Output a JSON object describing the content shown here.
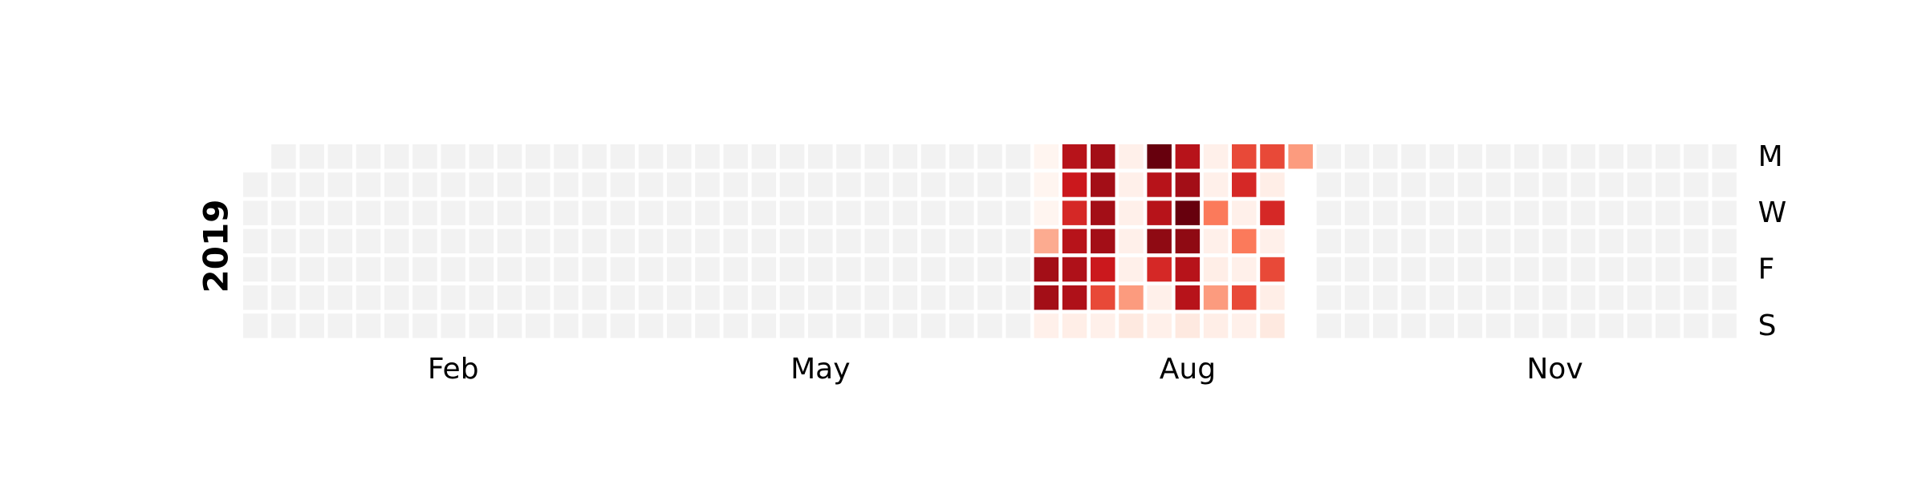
{
  "chart_data": {
    "type": "heatmap",
    "year": "2019",
    "month_labels": [
      {
        "label": "Feb",
        "week": 7
      },
      {
        "label": "May",
        "week": 20
      },
      {
        "label": "Aug",
        "week": 33
      },
      {
        "label": "Nov",
        "week": 46
      }
    ],
    "weekday_labels": [
      {
        "label": "M",
        "day": 0
      },
      {
        "label": "W",
        "day": 2
      },
      {
        "label": "F",
        "day": 4
      },
      {
        "label": "S",
        "day": 6
      }
    ],
    "weeks": 53,
    "first_weekday_of_year": 1,
    "last_weekday_of_year": 1,
    "background_color": "#f2f2f2",
    "active_weeks": [
      28,
      37
    ],
    "grid": [
      [
        0,
        0,
        0,
        0,
        0,
        0,
        0
      ],
      [
        0,
        0,
        0,
        0,
        0,
        0,
        0
      ],
      [
        0,
        0,
        0,
        0,
        0,
        0,
        0
      ],
      [
        0,
        0,
        0,
        0,
        0,
        0,
        0
      ],
      [
        0,
        0,
        0,
        0,
        0,
        0,
        0
      ],
      [
        0,
        0,
        0,
        0,
        0,
        0,
        0
      ],
      [
        0,
        0,
        0,
        0,
        0,
        0,
        0
      ],
      [
        0,
        0,
        0,
        0,
        0,
        0,
        0
      ],
      [
        0,
        0,
        0,
        0,
        0,
        0,
        0
      ],
      [
        0,
        0,
        0,
        0,
        0,
        0,
        0
      ],
      [
        0,
        0,
        0,
        0,
        0,
        0,
        0
      ],
      [
        0,
        0,
        0,
        0,
        0,
        0,
        0
      ],
      [
        0,
        0,
        0,
        0,
        0,
        0,
        0
      ],
      [
        0,
        0,
        0,
        0,
        0,
        0,
        0
      ],
      [
        0,
        0,
        0,
        0,
        0,
        0,
        0
      ],
      [
        0,
        0,
        0,
        0,
        0,
        0,
        0
      ],
      [
        0,
        0,
        0,
        0,
        0,
        0,
        0
      ],
      [
        0,
        0,
        0,
        0,
        0,
        0,
        0
      ],
      [
        0,
        0,
        0,
        0,
        0,
        0,
        0
      ],
      [
        0,
        0,
        0,
        0,
        0,
        0,
        0
      ],
      [
        0,
        0,
        0,
        0,
        0,
        0,
        0
      ],
      [
        0,
        0,
        0,
        0,
        0,
        0,
        0
      ],
      [
        0,
        0,
        0,
        0,
        0,
        0,
        0
      ],
      [
        0,
        0,
        0,
        0,
        0,
        0,
        0
      ],
      [
        0,
        0,
        0,
        0,
        0,
        0,
        0
      ],
      [
        0,
        0,
        0,
        0,
        0,
        0,
        0
      ],
      [
        0,
        0,
        0,
        0,
        0,
        0,
        0
      ],
      [
        0,
        0,
        0,
        0,
        0,
        0,
        0
      ],
      [
        0,
        0,
        0,
        0.3,
        0.85,
        0.85,
        0.02
      ],
      [
        0.8,
        0.75,
        0.7,
        0.8,
        0.82,
        0.82,
        0.03
      ],
      [
        0.85,
        0.85,
        0.85,
        0.85,
        0.75,
        0.6,
        0.02
      ],
      [
        0.02,
        0.02,
        0.02,
        0.02,
        0.02,
        0.35,
        0.05
      ],
      [
        1.0,
        0.8,
        0.8,
        0.9,
        0.7,
        0.02,
        0.02
      ],
      [
        0.8,
        0.85,
        1.0,
        0.9,
        0.8,
        0.8,
        0.05
      ],
      [
        0.02,
        0.02,
        0.45,
        0.02,
        0.03,
        0.35,
        0.03
      ],
      [
        0.6,
        0.7,
        0.02,
        0.45,
        0.02,
        0.6,
        0.02
      ],
      [
        0.6,
        0.03,
        0.7,
        0.02,
        0.6,
        0.03,
        0.05
      ],
      [
        0.35,
        null,
        null,
        null,
        null,
        null,
        null
      ],
      [
        0,
        0,
        0,
        0,
        0,
        0,
        0
      ],
      [
        0,
        0,
        0,
        0,
        0,
        0,
        0
      ],
      [
        0,
        0,
        0,
        0,
        0,
        0,
        0
      ],
      [
        0,
        0,
        0,
        0,
        0,
        0,
        0
      ],
      [
        0,
        0,
        0,
        0,
        0,
        0,
        0
      ],
      [
        0,
        0,
        0,
        0,
        0,
        0,
        0
      ],
      [
        0,
        0,
        0,
        0,
        0,
        0,
        0
      ],
      [
        0,
        0,
        0,
        0,
        0,
        0,
        0
      ],
      [
        0,
        0,
        0,
        0,
        0,
        0,
        0
      ],
      [
        0,
        0,
        0,
        0,
        0,
        0,
        0
      ],
      [
        0,
        0,
        0,
        0,
        0,
        0,
        0
      ],
      [
        0,
        0,
        0,
        0,
        0,
        0,
        0
      ],
      [
        0,
        0,
        0,
        0,
        0,
        0,
        0
      ],
      [
        0,
        0,
        0,
        0,
        0,
        0,
        0
      ],
      [
        0,
        0,
        0,
        0,
        0,
        0,
        0
      ]
    ],
    "colormap": "Reds",
    "grid_lines": false,
    "legend": "none"
  }
}
